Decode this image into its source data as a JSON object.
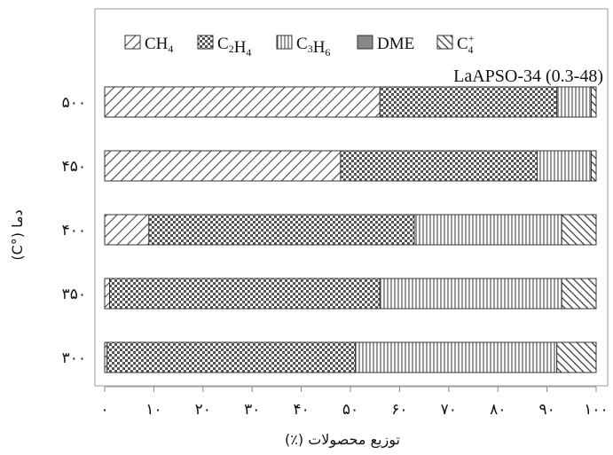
{
  "chart_data": {
    "type": "bar",
    "orientation": "horizontal",
    "stacked": true,
    "annotation": "LaAPSO-34 (0.3-48)",
    "xlabel": "توزیع محصولات (٪)",
    "ylabel": "دما (°C)",
    "xlim": [
      0,
      100
    ],
    "x_ticks": [
      "۰",
      "۱۰",
      "۲۰",
      "۳۰",
      "۴۰",
      "۵۰",
      "۶۰",
      "۷۰",
      "۸۰",
      "۹۰",
      "۱۰۰"
    ],
    "grid": false,
    "legend_position": "top",
    "categories": [
      "۵۰۰",
      "۴۵۰",
      "۴۰۰",
      "۳۵۰",
      "۳۰۰"
    ],
    "series": [
      {
        "name": "CH4",
        "sub": "4",
        "sup": "",
        "base": "CH",
        "pattern": "diag",
        "values": [
          56,
          48,
          9,
          1,
          0.5
        ]
      },
      {
        "name": "C2H4",
        "sub": "4",
        "sup": "",
        "base": "C2H",
        "pattern": "cross",
        "values": [
          36,
          40,
          54,
          55,
          50.5
        ]
      },
      {
        "name": "C3H6",
        "sub": "6",
        "sup": "",
        "base": "C3H",
        "pattern": "vert",
        "values": [
          7,
          11,
          30,
          37,
          41
        ]
      },
      {
        "name": "DME",
        "sub": "",
        "sup": "",
        "base": "DME",
        "pattern": "solid",
        "values": [
          0,
          0,
          0,
          0,
          0
        ]
      },
      {
        "name": "C4+",
        "sub": "4",
        "sup": "+",
        "base": "C",
        "pattern": "anti",
        "values": [
          1,
          1,
          7,
          7,
          8
        ]
      }
    ],
    "colors": {
      "stroke": "#333333",
      "pattern": "#444444",
      "frame": "#bbbbbb",
      "solid": "#888888"
    }
  }
}
